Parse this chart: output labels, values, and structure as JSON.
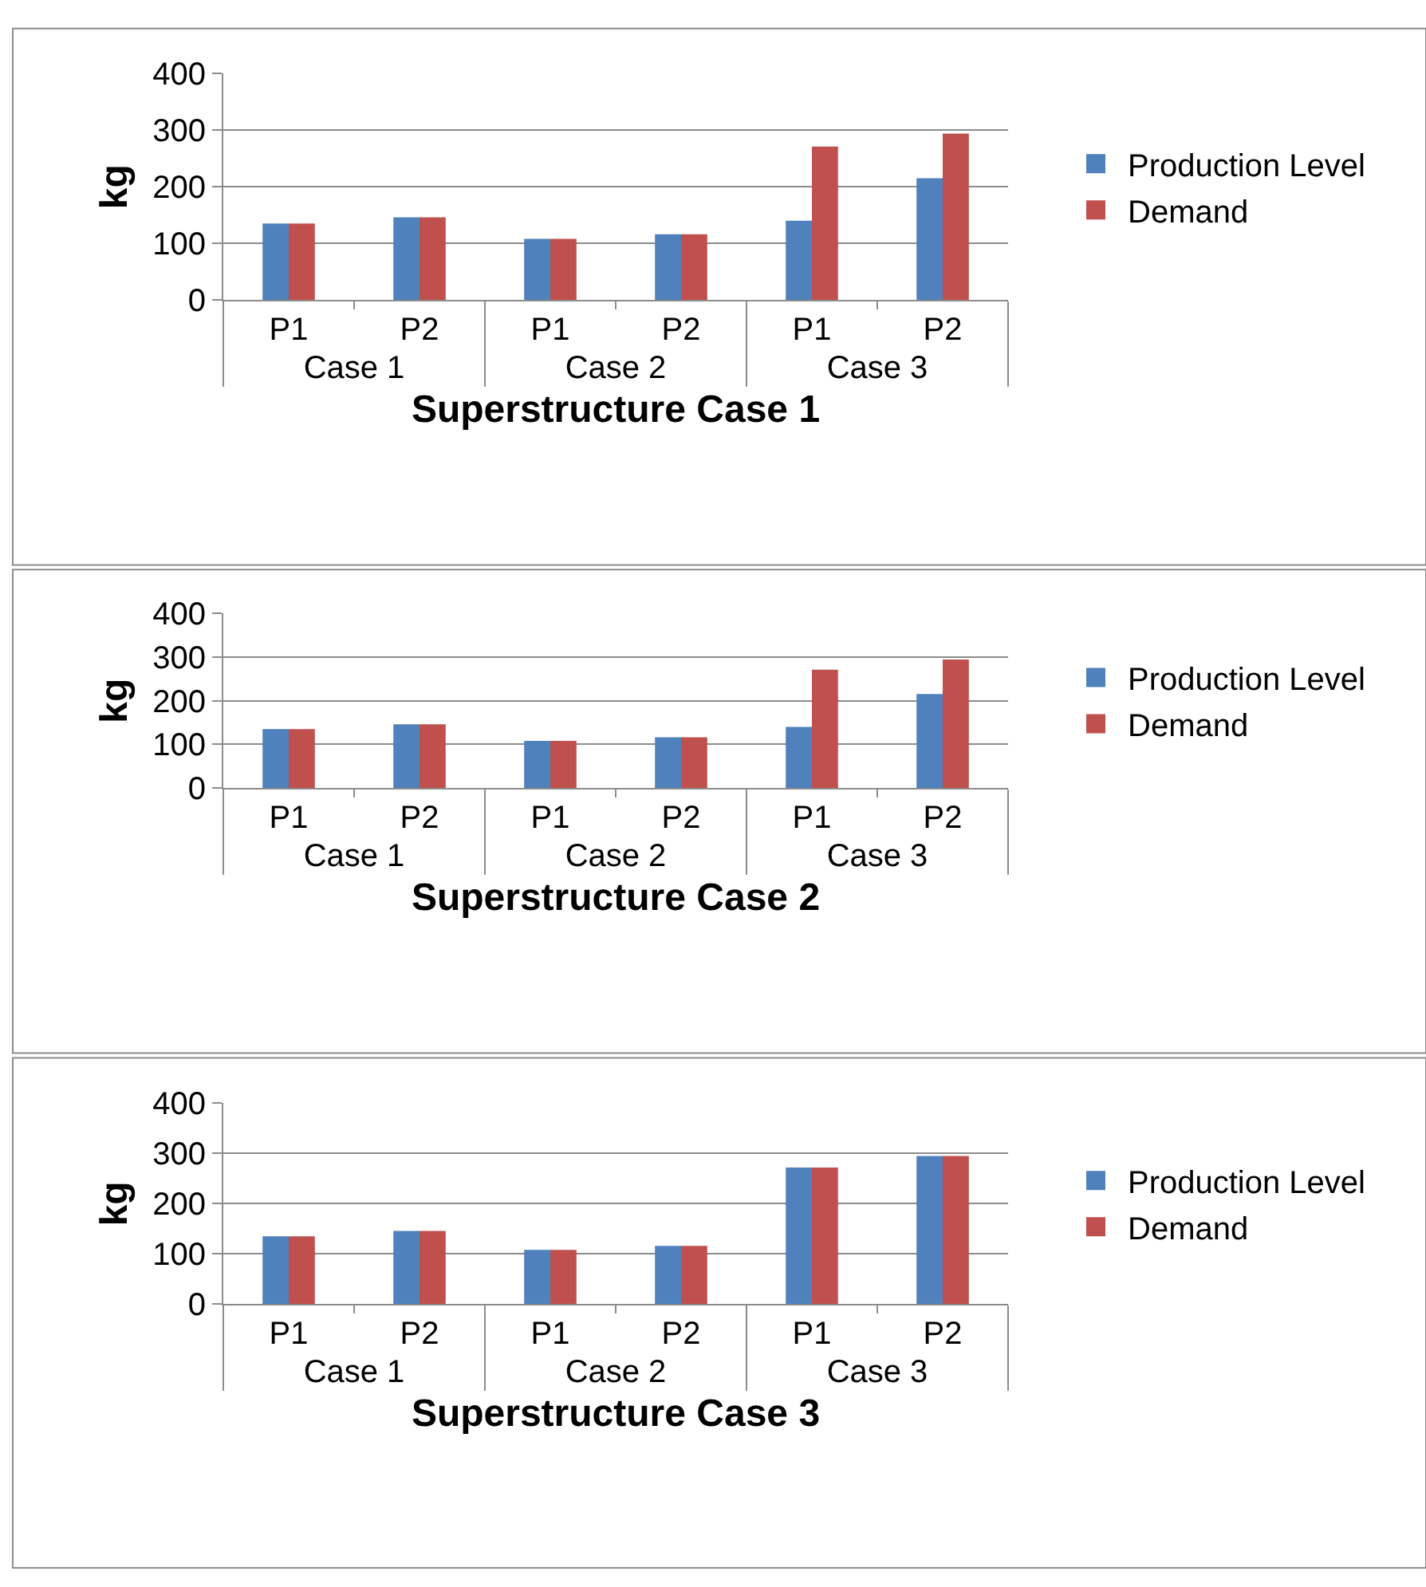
{
  "chart_data": [
    {
      "type": "bar",
      "xlabel": "Superstructure Case 1",
      "ylabel": "kg",
      "categories": [
        "P1",
        "P2",
        "P1",
        "P2",
        "P1",
        "P2"
      ],
      "annotations": [
        "Case 1",
        "Case 2",
        "Case 3"
      ],
      "series": [
        {
          "name": "Production Level",
          "color": "#4f81bd",
          "values": [
            135,
            146,
            108,
            116,
            140,
            215
          ]
        },
        {
          "name": "Demand",
          "color": "#c0504d",
          "values": [
            135,
            146,
            108,
            116,
            271,
            294
          ]
        }
      ],
      "ylim": [
        0,
        400
      ],
      "yticks": [
        0,
        100,
        200,
        300,
        400
      ],
      "grid": "y",
      "legend": "right"
    },
    {
      "type": "bar",
      "xlabel": "Superstructure Case 2",
      "ylabel": "kg",
      "categories": [
        "P1",
        "P2",
        "P1",
        "P2",
        "P1",
        "P2"
      ],
      "annotations": [
        "Case 1",
        "Case 2",
        "Case 3"
      ],
      "series": [
        {
          "name": "Production Level",
          "color": "#4f81bd",
          "values": [
            135,
            146,
            108,
            116,
            140,
            215
          ]
        },
        {
          "name": "Demand",
          "color": "#c0504d",
          "values": [
            135,
            146,
            108,
            116,
            271,
            294
          ]
        }
      ],
      "ylim": [
        0,
        400
      ],
      "yticks": [
        0,
        100,
        200,
        300,
        400
      ],
      "grid": "y",
      "legend": "right"
    },
    {
      "type": "bar",
      "xlabel": "Superstructure Case 3",
      "ylabel": "kg",
      "categories": [
        "P1",
        "P2",
        "P1",
        "P2",
        "P1",
        "P2"
      ],
      "annotations": [
        "Case 1",
        "Case 2",
        "Case 3"
      ],
      "series": [
        {
          "name": "Production Level",
          "color": "#4f81bd",
          "values": [
            135,
            146,
            108,
            116,
            272,
            295
          ]
        },
        {
          "name": "Demand",
          "color": "#c0504d",
          "values": [
            135,
            146,
            108,
            116,
            272,
            295
          ]
        }
      ],
      "ylim": [
        0,
        400
      ],
      "yticks": [
        0,
        100,
        200,
        300,
        400
      ],
      "grid": "y",
      "legend": "right"
    }
  ]
}
